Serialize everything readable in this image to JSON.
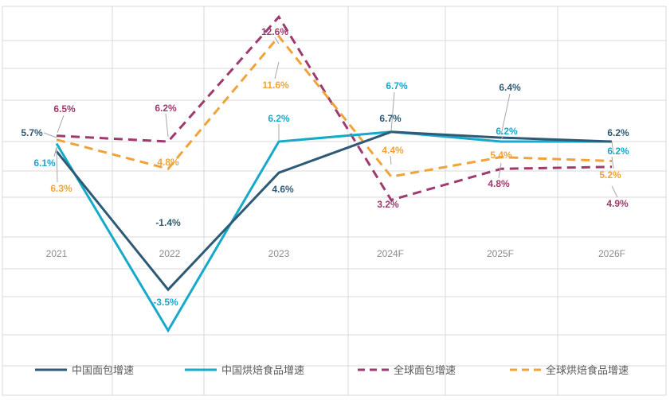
{
  "chart_data": {
    "type": "line",
    "title": "",
    "xlabel": "",
    "ylabel": "",
    "categories": [
      "2021",
      "2022",
      "2023",
      "2024F",
      "2025F",
      "2026F"
    ],
    "ylim": [
      -6,
      16
    ],
    "grid": true,
    "legend_position": "bottom",
    "series": [
      {
        "name": "中国面包增速",
        "color": "#2e5a75",
        "dash": "solid",
        "values": [
          5.7,
          -1.4,
          4.6,
          6.7,
          6.4,
          6.2
        ],
        "labels": [
          "5.7%",
          "-1.4%",
          "4.6%",
          "6.7%",
          "6.4%",
          "6.2%"
        ]
      },
      {
        "name": "中国烘焙食品增速",
        "color": "#17a9c9",
        "dash": "solid",
        "values": [
          6.1,
          -3.5,
          6.2,
          6.7,
          6.2,
          6.2
        ],
        "labels": [
          "6.1%",
          "-3.5%",
          "6.2%",
          "6.7%",
          "6.2%",
          "6.2%"
        ]
      },
      {
        "name": "全球面包增速",
        "color": "#9e3a6e",
        "dash": "dashed",
        "values": [
          6.5,
          6.2,
          12.6,
          3.2,
          4.8,
          4.9
        ],
        "labels": [
          "6.5%",
          "6.2%",
          "12.6%",
          "3.2%",
          "4.8%",
          "4.9%"
        ]
      },
      {
        "name": "全球烘焙食品增速",
        "color": "#f0a33a",
        "dash": "dashed",
        "values": [
          6.3,
          4.8,
          11.6,
          4.4,
          5.4,
          5.2
        ],
        "labels": [
          "6.3%",
          "4.8%",
          "11.6%",
          "4.4%",
          "5.4%",
          "5.2%"
        ]
      }
    ]
  }
}
